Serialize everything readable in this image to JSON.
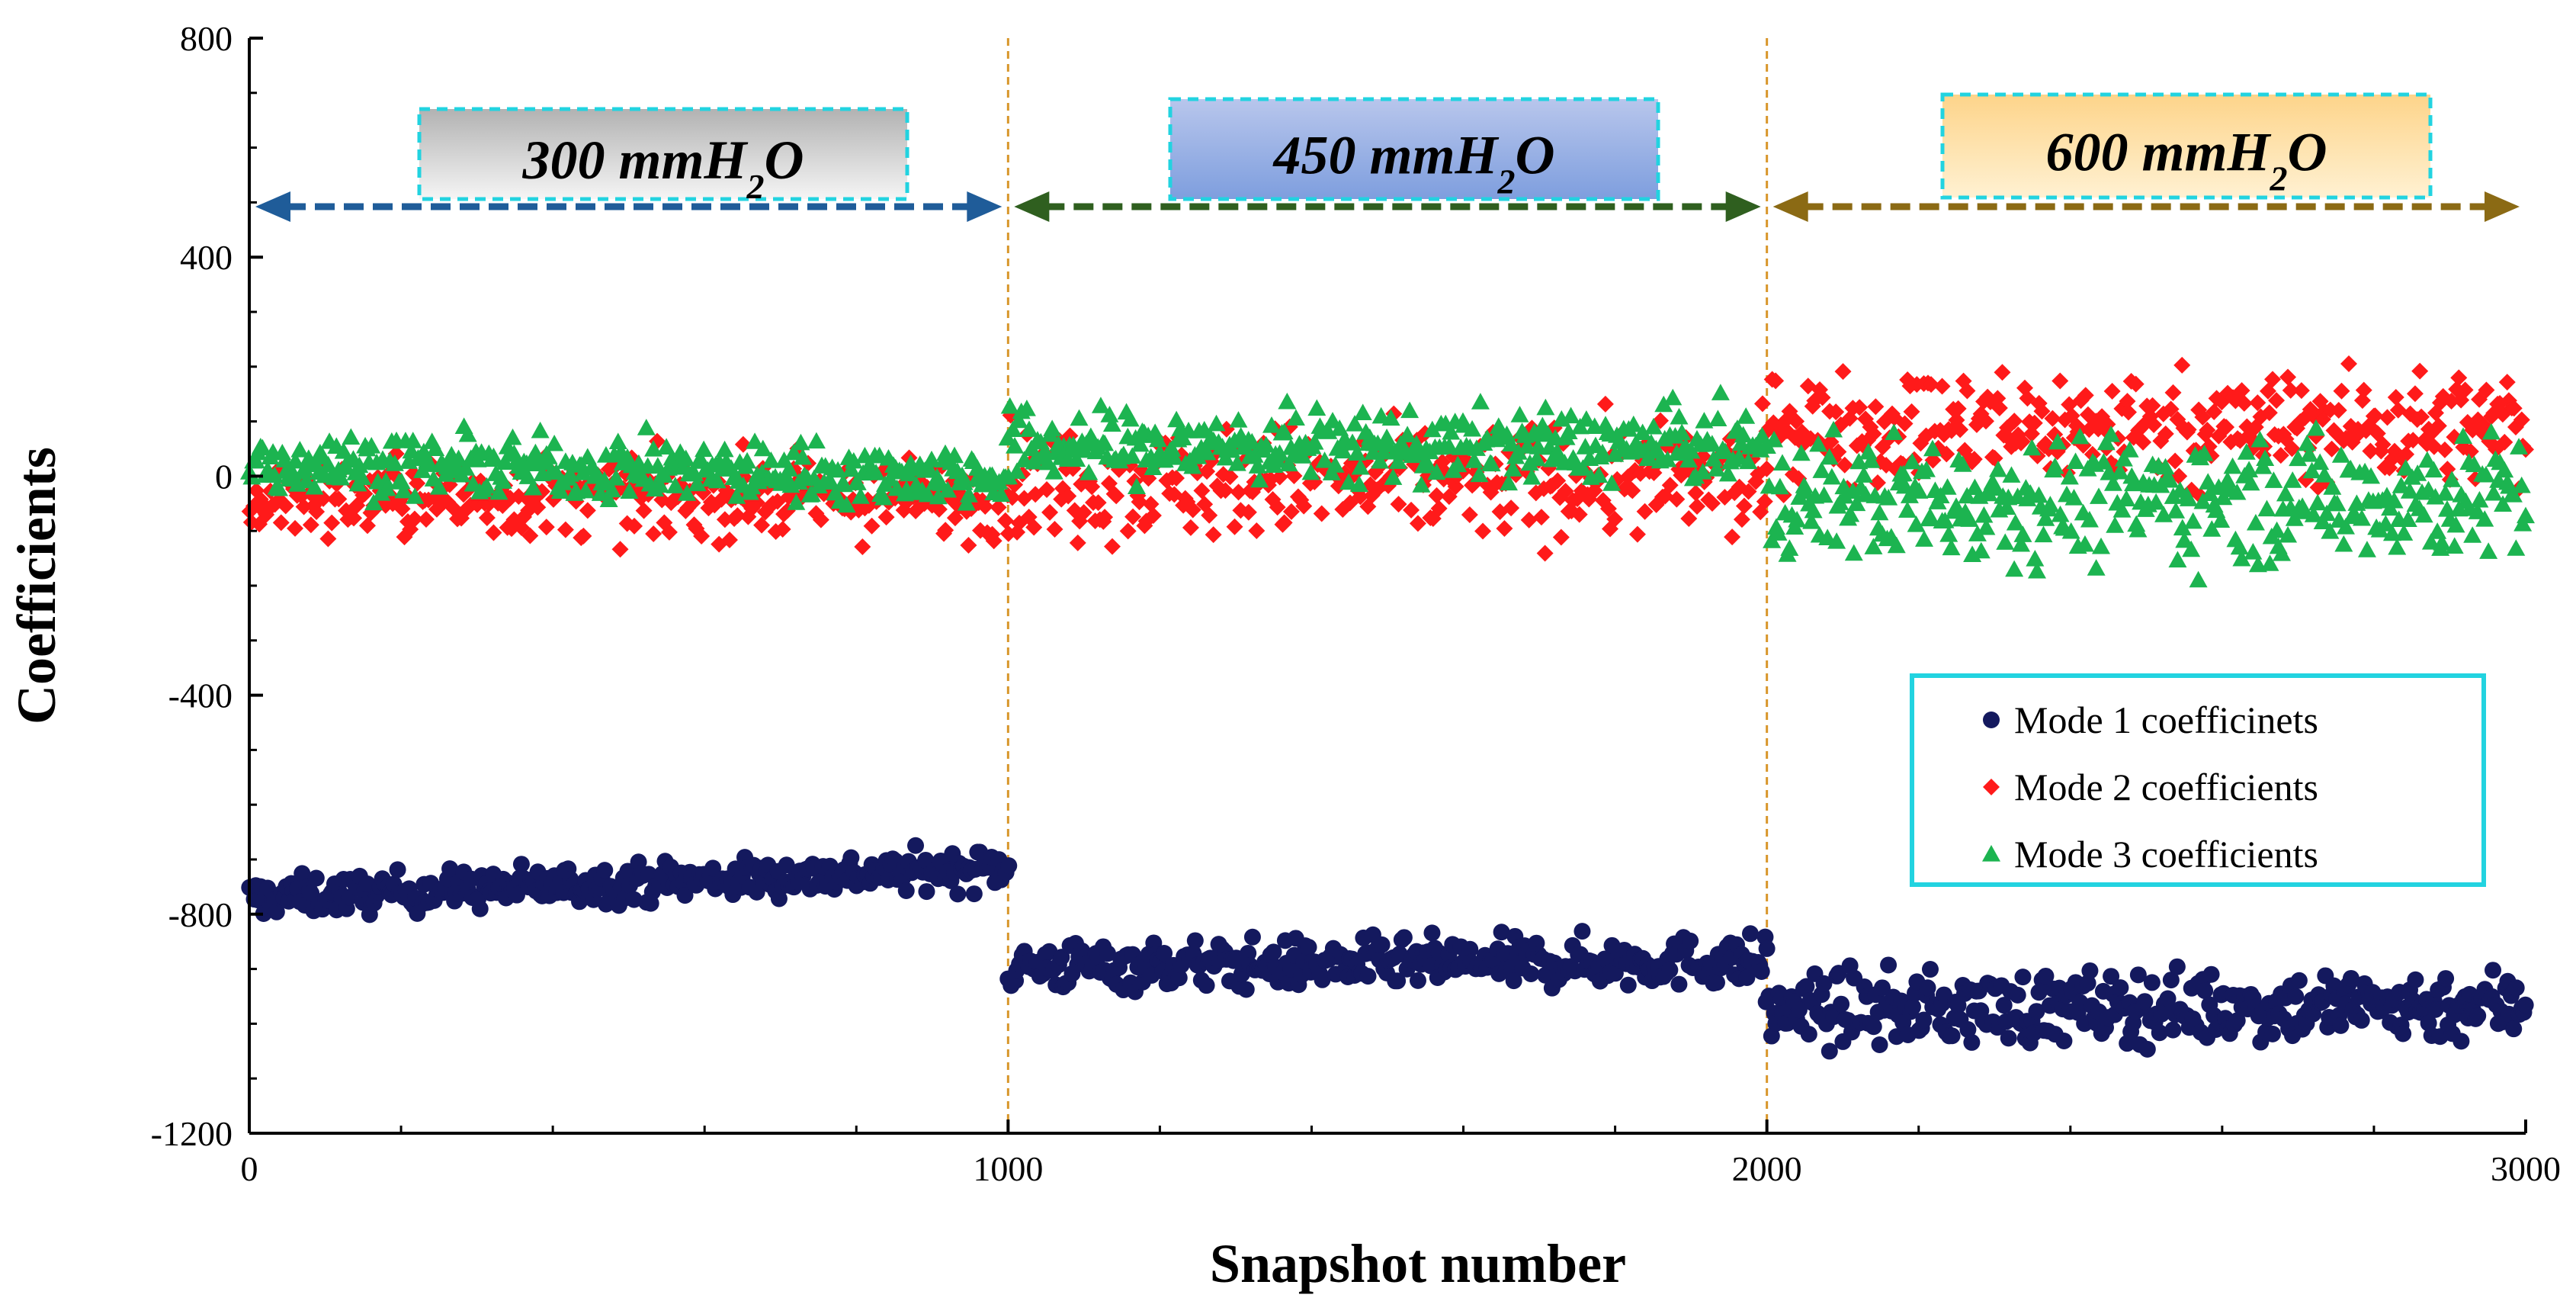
{
  "chart_data": {
    "type": "scatter",
    "xlabel": "Snapshot number",
    "ylabel": "Coefficients",
    "xlim": [
      0,
      3000
    ],
    "ylim": [
      -1200,
      800
    ],
    "x_ticks": [
      0,
      1000,
      2000,
      3000
    ],
    "y_ticks": [
      800,
      400,
      0,
      -400,
      -800,
      -1200
    ],
    "x_minor_step": 200,
    "y_minor_step": 100,
    "grid": false,
    "legend_position": "lower-right",
    "region_dividers": [
      1000,
      2000
    ],
    "regions": [
      {
        "label": "300 mmH",
        "sub": "2",
        "suffix": "O",
        "range": [
          0,
          1000
        ],
        "arrow_color": "#1F5C99",
        "fill_top": "#b2b2b2",
        "fill_bottom": "#f5f5f5"
      },
      {
        "label": "450 mmH",
        "sub": "2",
        "suffix": "O",
        "range": [
          1000,
          2000
        ],
        "arrow_color": "#2F5F1F",
        "fill_top": "#b8c6ec",
        "fill_bottom": "#7e9ede"
      },
      {
        "label": "600 mmH",
        "sub": "2",
        "suffix": "O",
        "range": [
          2000,
          3000
        ],
        "arrow_color": "#8B6A14",
        "fill_top": "#fdd48a",
        "fill_bottom": "#fff1d2"
      }
    ],
    "series": [
      {
        "name": "Mode 1 coefficinets",
        "marker": "circle",
        "color": "#14195E",
        "segments": [
          {
            "x_range": [
              0,
              1000
            ],
            "mean_start": -770,
            "mean_end": -715,
            "spread": 30
          },
          {
            "x_range": [
              1000,
              2000
            ],
            "mean_start": -895,
            "mean_end": -885,
            "spread": 38
          },
          {
            "x_range": [
              2000,
              3000
            ],
            "mean_start": -975,
            "mean_end": -965,
            "spread": 55
          }
        ]
      },
      {
        "name": "Mode 2 coefficients",
        "marker": "diamond",
        "color": "#FF1A1A",
        "segments": [
          {
            "x_range": [
              0,
              1000
            ],
            "mean_start": -40,
            "mean_end": -40,
            "spread": 60
          },
          {
            "x_range": [
              1000,
              2000
            ],
            "mean_start": -10,
            "mean_end": -10,
            "spread": 85
          },
          {
            "x_range": [
              2000,
              3000
            ],
            "mean_start": 90,
            "mean_end": 90,
            "spread": 85
          }
        ]
      },
      {
        "name": "Mode 3 coefficients",
        "marker": "triangle",
        "color": "#1CB450",
        "segments": [
          {
            "x_range": [
              0,
              1000
            ],
            "mean_start": 25,
            "mean_end": 0,
            "spread": 45
          },
          {
            "x_range": [
              1000,
              2000
            ],
            "mean_start": 55,
            "mean_end": 55,
            "spread": 55
          },
          {
            "x_range": [
              2000,
              3000
            ],
            "mean_start": -40,
            "mean_end": -40,
            "spread": 95
          }
        ]
      }
    ],
    "points_per_segment": 330
  }
}
